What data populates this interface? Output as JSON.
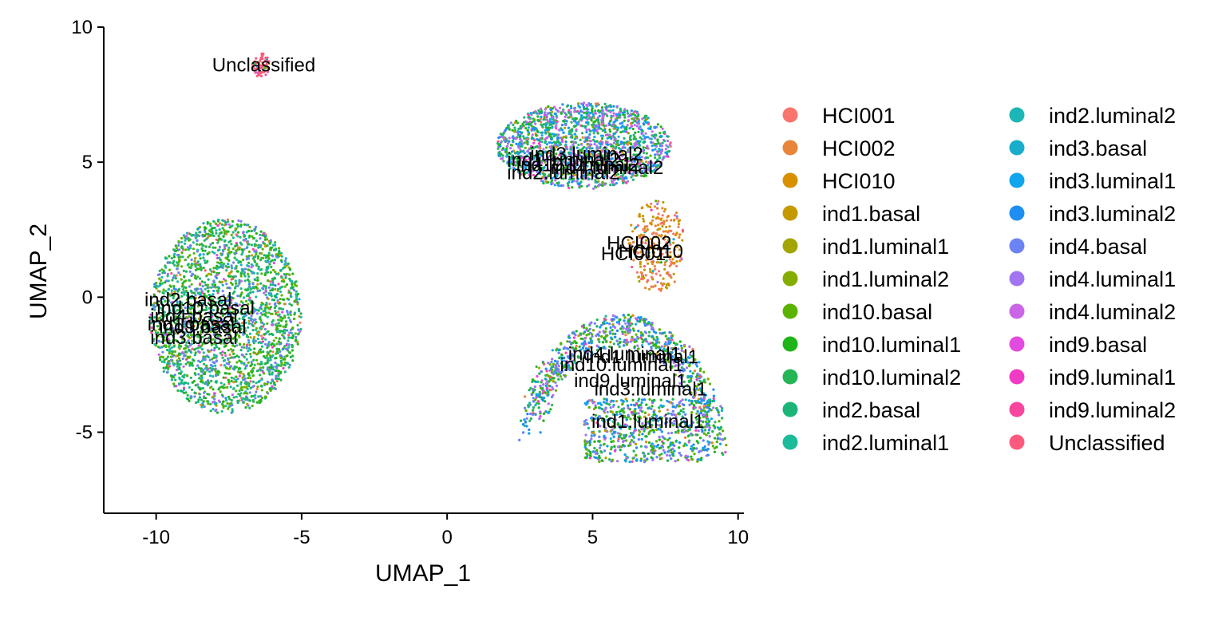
{
  "chart_data": {
    "type": "scatter",
    "title": "",
    "xlabel": "UMAP_1",
    "ylabel": "UMAP_2",
    "xlim": [
      -11.8,
      10.2
    ],
    "ylim": [
      -8.0,
      10.0
    ],
    "x_ticks": [
      -10,
      -5,
      0,
      5,
      10
    ],
    "x_tick_labels": [
      "-10",
      "-5",
      "0",
      "5",
      "10"
    ],
    "y_ticks": [
      -5,
      0,
      5,
      10
    ],
    "y_tick_labels": [
      "-5",
      "0",
      "5",
      "10"
    ],
    "grid": false,
    "legend_position": "right",
    "legend_columns": 2,
    "series": [
      {
        "name": "HCI001",
        "color": "#F8766D"
      },
      {
        "name": "HCI002",
        "color": "#E8853A"
      },
      {
        "name": "HCI010",
        "color": "#D89000"
      },
      {
        "name": "ind1.basal",
        "color": "#C49A00"
      },
      {
        "name": "ind1.luminal1",
        "color": "#A3A500"
      },
      {
        "name": "ind1.luminal2",
        "color": "#85AD00"
      },
      {
        "name": "ind10.basal",
        "color": "#5BB300"
      },
      {
        "name": "ind10.luminal1",
        "color": "#1FB41A"
      },
      {
        "name": "ind10.luminal2",
        "color": "#26B554"
      },
      {
        "name": "ind2.basal",
        "color": "#1BB57A"
      },
      {
        "name": "ind2.luminal1",
        "color": "#1CBB9A"
      },
      {
        "name": "ind2.luminal2",
        "color": "#1CB6B6"
      },
      {
        "name": "ind3.basal",
        "color": "#19ADCB"
      },
      {
        "name": "ind3.luminal1",
        "color": "#10A5EC"
      },
      {
        "name": "ind3.luminal2",
        "color": "#1F8EF2"
      },
      {
        "name": "ind4.basal",
        "color": "#6B83F3"
      },
      {
        "name": "ind4.luminal1",
        "color": "#A275F0"
      },
      {
        "name": "ind4.luminal2",
        "color": "#C965E6"
      },
      {
        "name": "ind9.basal",
        "color": "#E24AE0"
      },
      {
        "name": "ind9.luminal1",
        "color": "#F03BC4"
      },
      {
        "name": "ind9.luminal2",
        "color": "#F8469F"
      },
      {
        "name": "Unclassified",
        "color": "#FB5A7E"
      }
    ],
    "clusters": [
      {
        "cx": -7.6,
        "cy": -0.7,
        "rx": 2.6,
        "ry": 3.6,
        "n": 2400,
        "dominant": [
          6,
          7,
          8,
          9,
          15,
          10
        ],
        "shape": "blob"
      },
      {
        "cx": 4.7,
        "cy": 5.6,
        "rx": 3.0,
        "ry": 1.6,
        "n": 1700,
        "dominant": [
          7,
          8,
          9,
          17,
          16,
          14,
          13
        ],
        "shape": "blob"
      },
      {
        "cx": 7.2,
        "cy": 1.9,
        "rx": 1.0,
        "ry": 1.7,
        "n": 260,
        "dominant": [
          0,
          1,
          2,
          3
        ],
        "shape": "blob"
      },
      {
        "cx": 6.0,
        "cy": -2.5,
        "rx": 3.6,
        "ry": 3.6,
        "n": 2400,
        "dominant": [
          7,
          8,
          6,
          13,
          14,
          15,
          16
        ],
        "shape": "arc"
      },
      {
        "cx": -6.4,
        "cy": 8.6,
        "rx": 0.3,
        "ry": 0.45,
        "n": 60,
        "dominant": [
          21
        ],
        "shape": "blob"
      }
    ],
    "annotations": [
      {
        "text": "Unclassified",
        "x": -6.3,
        "y": 8.6
      },
      {
        "text": "ind1.luminal2",
        "x": 4.0,
        "y": 5.1
      },
      {
        "text": "ind3.luminal2",
        "x": 4.8,
        "y": 5.3
      },
      {
        "text": "ind10.luminal2",
        "x": 4.5,
        "y": 4.9
      },
      {
        "text": "ind2.luminal2",
        "x": 4.0,
        "y": 4.6
      },
      {
        "text": "ind4.luminal2",
        "x": 5.5,
        "y": 4.8
      },
      {
        "text": "HCI002",
        "x": 6.6,
        "y": 2.0
      },
      {
        "text": "HCI010",
        "x": 7.0,
        "y": 1.7
      },
      {
        "text": "HCI001",
        "x": 6.4,
        "y": 1.6
      },
      {
        "text": "ind2.basal",
        "x": -8.9,
        "y": -0.1
      },
      {
        "text": "ind10.basal",
        "x": -8.3,
        "y": -0.4
      },
      {
        "text": "ind4.basal",
        "x": -8.7,
        "y": -0.7
      },
      {
        "text": "ind1.basal",
        "x": -8.8,
        "y": -1.0
      },
      {
        "text": "ind9.basal",
        "x": -8.4,
        "y": -1.1
      },
      {
        "text": "ind3.basal",
        "x": -8.7,
        "y": -1.5
      },
      {
        "text": "ind4.luminal1",
        "x": 6.1,
        "y": -2.1
      },
      {
        "text": "ind1.luminal1",
        "x": 6.7,
        "y": -2.2
      },
      {
        "text": "ind10.luminal1",
        "x": 6.0,
        "y": -2.5
      },
      {
        "text": "ind9.luminal1",
        "x": 6.3,
        "y": -3.1
      },
      {
        "text": "ind3.luminal1",
        "x": 7.0,
        "y": -3.4
      },
      {
        "text": "ind1.luminal1",
        "x": 6.9,
        "y": -4.6
      }
    ]
  }
}
